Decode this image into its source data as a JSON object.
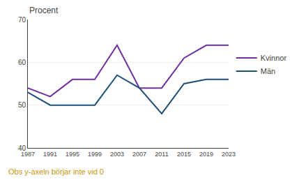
{
  "chart_data": {
    "type": "line",
    "ylabel": "Procent",
    "x": [
      1987,
      1991,
      1995,
      1999,
      2003,
      2007,
      2011,
      2015,
      2019,
      2023
    ],
    "series": [
      {
        "name": "Kvinnor",
        "color": "#7030a0",
        "values": [
          54,
          52,
          56,
          56,
          64,
          54,
          54,
          61,
          64,
          64
        ]
      },
      {
        "name": "Män",
        "color": "#1f4e79",
        "values": [
          53,
          50,
          50,
          50,
          57,
          54,
          48,
          55,
          56,
          56
        ]
      }
    ],
    "xlim": [
      1987,
      2023
    ],
    "xticks": [
      1987,
      1991,
      1995,
      1999,
      2003,
      2007,
      2011,
      2015,
      2019,
      2023
    ],
    "ylim": [
      40,
      70
    ],
    "yticks": [
      40,
      50,
      60,
      70
    ],
    "grid": true,
    "legend": "right",
    "annotations": [
      {
        "text": "Obs y-axeln börjar inte vid 0",
        "color": "#c8960a"
      }
    ]
  }
}
